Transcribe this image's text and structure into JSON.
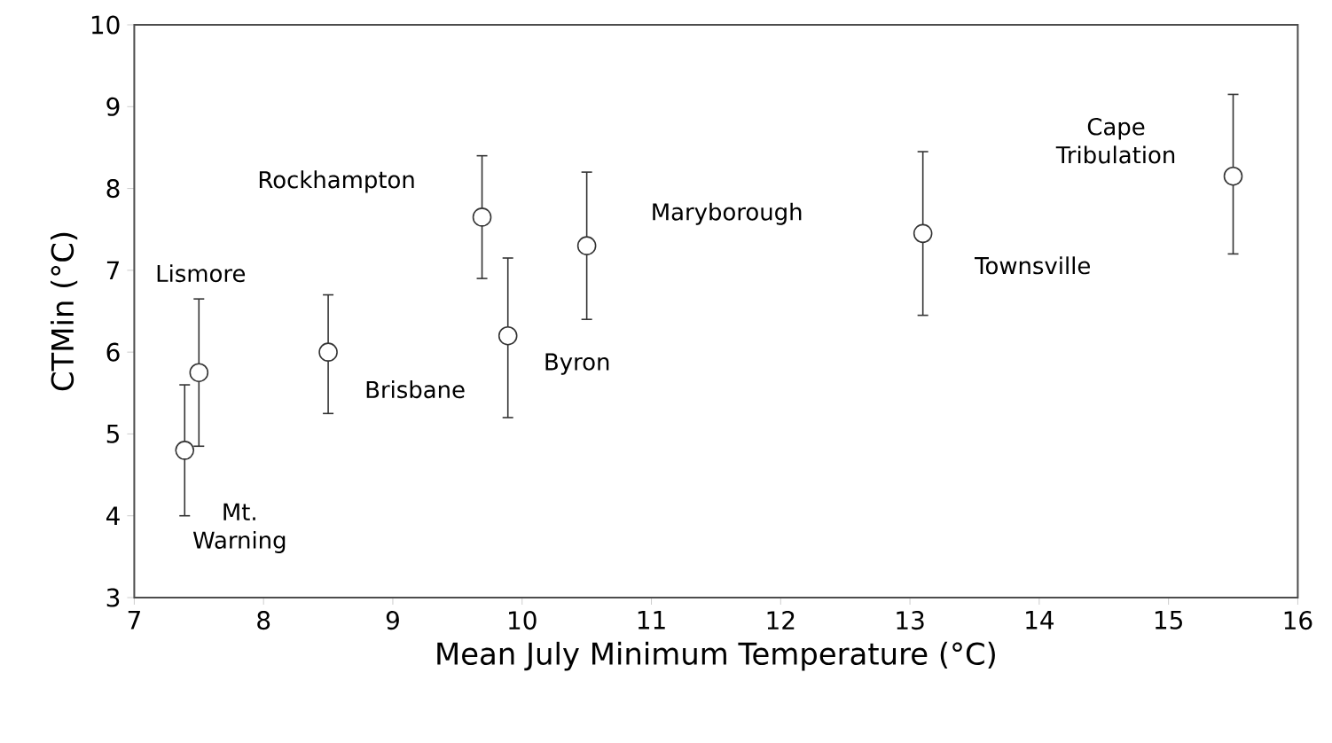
{
  "chart_data": {
    "type": "scatter",
    "xlabel": "Mean July Minimum Temperature (°C)",
    "ylabel": "CTMin (°C)",
    "x": [
      7.39,
      7.5,
      8.5,
      9.69,
      9.89,
      10.5,
      13.1,
      15.5
    ],
    "values": [
      4.8,
      5.75,
      6.0,
      7.65,
      6.2,
      7.3,
      7.45,
      8.15
    ],
    "errors": [
      [
        4.0,
        5.6
      ],
      [
        4.85,
        6.65
      ],
      [
        5.25,
        6.7
      ],
      [
        6.9,
        8.4
      ],
      [
        5.2,
        7.15
      ],
      [
        6.4,
        8.2
      ],
      [
        6.45,
        8.45
      ],
      [
        7.2,
        9.15
      ]
    ],
    "color": "#333333",
    "marker": "circle",
    "xlim": [
      7,
      16
    ],
    "ylim": [
      3,
      10
    ],
    "xticks": [
      7,
      8,
      9,
      10,
      11,
      12,
      13,
      14,
      15,
      16
    ],
    "yticks": [
      3,
      4,
      5,
      6,
      7,
      8,
      9,
      10
    ],
    "annotations": [
      "Mt. Warning",
      "Lismore",
      "Brisbane",
      "Rockhampton",
      "Byron",
      "Maryborough",
      "Townsville",
      "Cape Tribulation"
    ]
  }
}
